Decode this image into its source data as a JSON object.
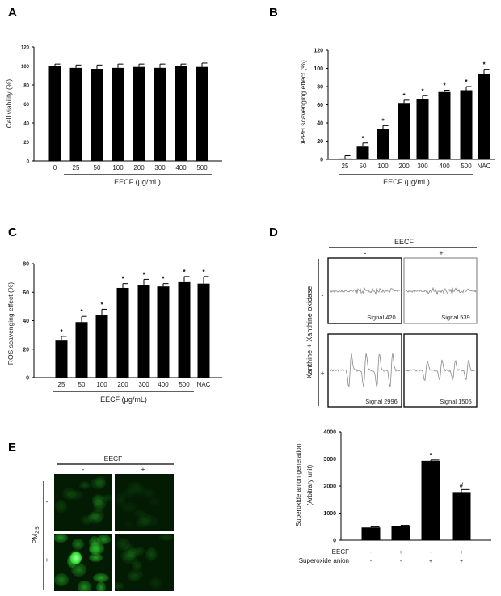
{
  "panels": {
    "a": "A",
    "b": "B",
    "c": "C",
    "d": "D",
    "e": "E"
  },
  "chart_data": [
    {
      "id": "A",
      "type": "bar",
      "categories": [
        "0",
        "25",
        "50",
        "100",
        "200",
        "300",
        "400",
        "500"
      ],
      "values": [
        100,
        98,
        97,
        98,
        99,
        98,
        100,
        99
      ],
      "errors": [
        2,
        3,
        4,
        4,
        3,
        4,
        2,
        4
      ],
      "marks": [
        "",
        "",
        "",
        "",
        "",
        "",
        "",
        ""
      ],
      "ylabel": "Cell viability (%)",
      "xlabel": "EECF (μg/mL)",
      "ylim": [
        0,
        120
      ],
      "yticks": [
        0,
        20,
        40,
        60,
        80,
        100,
        120
      ],
      "bar_color": "#000000"
    },
    {
      "id": "B",
      "type": "bar",
      "categories": [
        "25",
        "50",
        "100",
        "200",
        "300",
        "400",
        "500",
        "NAC"
      ],
      "values": [
        1,
        14,
        33,
        62,
        66,
        74,
        76,
        94
      ],
      "errors": [
        3,
        4,
        4,
        3,
        4,
        2,
        4,
        5
      ],
      "marks": [
        "",
        "*",
        "*",
        "*",
        "*",
        "*",
        "*",
        "*"
      ],
      "ylabel": "DPPH scavenging effect (%)",
      "xlabel": "EECF (μg/mL)",
      "ylim": [
        0,
        120
      ],
      "yticks": [
        0,
        20,
        40,
        60,
        80,
        100,
        120
      ],
      "bar_color": "#000000"
    },
    {
      "id": "C",
      "type": "bar",
      "categories": [
        "25",
        "50",
        "100",
        "200",
        "300",
        "400",
        "500",
        "NAC"
      ],
      "values": [
        26,
        39,
        44,
        63,
        65,
        64,
        67,
        66
      ],
      "errors": [
        3,
        4,
        4,
        3,
        4,
        2,
        4,
        5
      ],
      "marks": [
        "*",
        "*",
        "*",
        "*",
        "*",
        "*",
        "*",
        "*"
      ],
      "ylabel": "ROS scavenging effect (%)",
      "xlabel": "EECF (μg/mL)",
      "ylim": [
        0,
        80
      ],
      "yticks": [
        0,
        20,
        40,
        60,
        80
      ],
      "bar_color": "#000000"
    },
    {
      "id": "D",
      "type": "bar",
      "categories": [
        "1",
        "2",
        "3",
        "4"
      ],
      "values": [
        470,
        530,
        2930,
        1750
      ],
      "errors": [
        20,
        20,
        30,
        120
      ],
      "marks": [
        "",
        "",
        "*",
        "#"
      ],
      "ylabel": "Superoxide anion generation",
      "ylabel2": "(Arbitrary unit)",
      "ylim": [
        0,
        4000
      ],
      "yticks": [
        0,
        1000,
        2000,
        3000,
        4000
      ],
      "conditions": [
        {
          "label": "EECF",
          "values": [
            "-",
            "+",
            "-",
            "+"
          ]
        },
        {
          "label": "Superoxide anion",
          "values": [
            "-",
            "-",
            "+",
            "+"
          ]
        }
      ],
      "bar_color": "#000000"
    }
  ],
  "esr": {
    "header": "EECF",
    "columns": [
      "-",
      "+"
    ],
    "row_title": "Xanthine + Xanthine oxidase",
    "rows": [
      "-",
      "+"
    ],
    "signals": [
      "Signal 420",
      "Signal 539",
      "Signal 2996",
      "Signal 1505"
    ],
    "trace_color": "#888888"
  },
  "fluorescence": {
    "header": "EECF",
    "columns": [
      "-",
      "+"
    ],
    "row_title": "PM",
    "row_title_sub": "2.5",
    "rows": [
      "-",
      "+"
    ],
    "stain_color": "#2fd02f"
  }
}
